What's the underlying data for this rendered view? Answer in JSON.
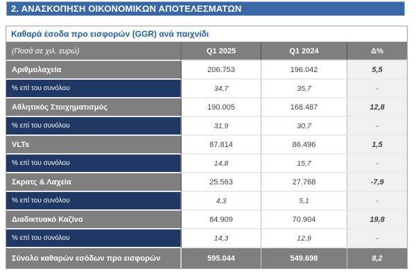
{
  "page": {
    "section_title": "2. ΑΝΑΣΚΟΠΗΣΗ ΟΙΚΟΝΟΜΙΚΩΝ ΑΠΟΤΕΛΕΣΜΑΤΩΝ"
  },
  "colors": {
    "header-bar": "#3A67A5",
    "header-bar-border": "#93ABCD",
    "row-gray": "#7F7F7F",
    "row-navy": "#1F3864",
    "title-blue": "#1F5CA9",
    "delta-bg": "#F0F0F0",
    "value-text": "#3F3F3F"
  },
  "table": {
    "title": "Καθαρά έσοδα προ εισφορών (GGR) ανά παιχνίδι",
    "unit_note": "(Ποσά σε χιλ. ευρώ)",
    "columns": [
      "Q1 2025",
      "Q1 2024",
      "Δ%"
    ],
    "rows": [
      {
        "label": "Αριθμολαχεία",
        "q1_2025": "206.753",
        "q1_2024": "196.042",
        "delta": "5,5"
      },
      {
        "label": "% επί του συνόλου",
        "q1_2025": "34,7",
        "q1_2024": "35,7",
        "delta": "-"
      },
      {
        "label": "Αθλητικός Στοιχηματισμός",
        "q1_2025": "190.005",
        "q1_2024": "168.487",
        "delta": "12,8"
      },
      {
        "label": "% επί του συνόλου",
        "q1_2025": "31,9",
        "q1_2024": "30,7",
        "delta": "-"
      },
      {
        "label": "VLTs",
        "q1_2025": "87.814",
        "q1_2024": "86.496",
        "delta": "1,5"
      },
      {
        "label": "% επί του συνόλου",
        "q1_2025": "14,8",
        "q1_2024": "15,7",
        "delta": "-"
      },
      {
        "label": "Σκρατς & Λαχεία",
        "q1_2025": "25.563",
        "q1_2024": "27.768",
        "delta": "-7,9"
      },
      {
        "label": "% επί του συνόλου",
        "q1_2025": "4,3",
        "q1_2024": "5,1",
        "delta": "-"
      },
      {
        "label": "Διαδικτυακό Καζίνο",
        "q1_2025": "84.909",
        "q1_2024": "70.904",
        "delta": "19,8"
      },
      {
        "label": "% επί του συνόλου",
        "q1_2025": "14,3",
        "q1_2024": "12,9",
        "delta": "-"
      }
    ],
    "total": {
      "label": "Σύνολο καθαρών εσόδων προ εισφορών",
      "q1_2025": "595.044",
      "q1_2024": "549.698",
      "delta": "8,2"
    }
  }
}
